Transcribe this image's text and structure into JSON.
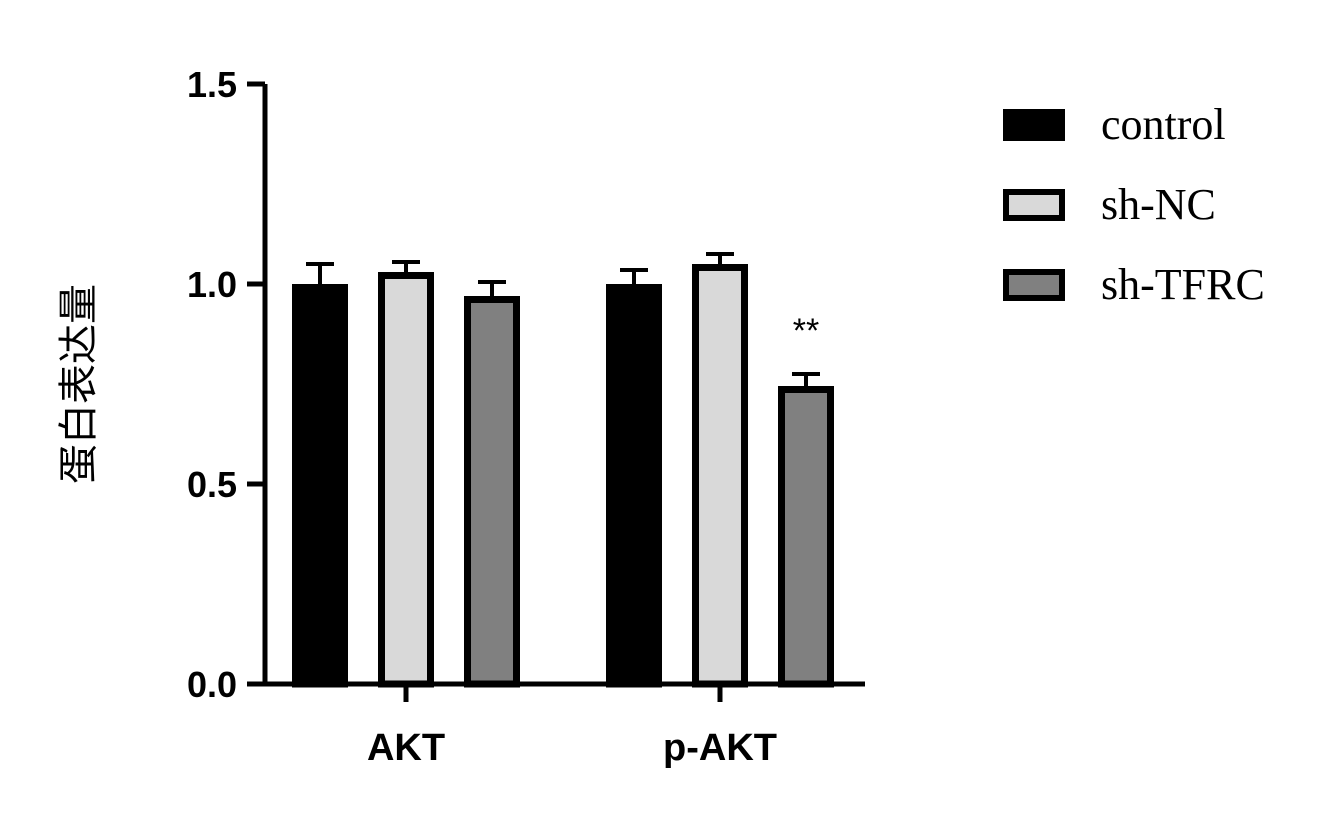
{
  "chart_data": {
    "type": "bar",
    "title": "",
    "xlabel": "",
    "ylabel": "蛋白表达量",
    "ylim": [
      0,
      1.5
    ],
    "yticks": [
      "0.0",
      "0.5",
      "1.0",
      "1.5"
    ],
    "ytick_values": [
      0,
      0.5,
      1.0,
      1.5
    ],
    "categories": [
      "AKT",
      "p-AKT"
    ],
    "series": [
      {
        "name": "control",
        "values": [
          1.0,
          1.0
        ],
        "errors": [
          0.05,
          0.035
        ],
        "color": "#000000"
      },
      {
        "name": "sh-NC",
        "values": [
          1.03,
          1.05
        ],
        "errors": [
          0.025,
          0.025
        ],
        "color": "#d9d9d9"
      },
      {
        "name": "sh-TFRC",
        "values": [
          0.97,
          0.745
        ],
        "errors": [
          0.035,
          0.03
        ],
        "color": "#808080"
      }
    ],
    "annotations": [
      {
        "category": "p-AKT",
        "series": "sh-TFRC",
        "text": "**"
      }
    ],
    "legend_position": "right",
    "grid": false
  }
}
